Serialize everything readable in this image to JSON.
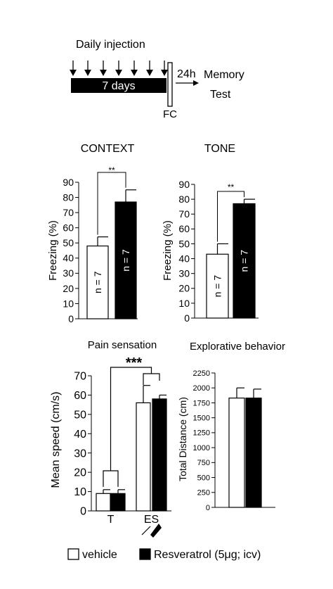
{
  "protocol": {
    "injection_label": "Daily injection",
    "duration_label": "7 days",
    "delay_label": "24h",
    "test_label_line1": "Memory",
    "test_label_line2": "Test",
    "fc_label": "FC"
  },
  "colors": {
    "vehicle": "#ffffff",
    "resveratrol": "#000000",
    "stroke": "#000000"
  },
  "legend": {
    "vehicle": "vehicle",
    "resveratrol": "Resveratrol (5μg; icv)"
  },
  "chart_data": [
    {
      "type": "bar",
      "title": "CONTEXT",
      "ylabel": "Freezing (%)",
      "ylim": [
        0,
        90
      ],
      "yticks": [
        0,
        10,
        20,
        30,
        40,
        50,
        60,
        70,
        80,
        90
      ],
      "categories": [
        ""
      ],
      "series": [
        {
          "name": "vehicle",
          "values": [
            48
          ],
          "errors": [
            6
          ],
          "n_labels": [
            "n = 7"
          ]
        },
        {
          "name": "Resveratrol (5μg; icv)",
          "values": [
            77
          ],
          "errors": [
            8
          ],
          "n_labels": [
            "n = 7"
          ]
        }
      ],
      "significance": "**"
    },
    {
      "type": "bar",
      "title": "TONE",
      "ylabel": "Freezing (%)",
      "ylim": [
        0,
        90
      ],
      "yticks": [
        0,
        10,
        20,
        30,
        40,
        50,
        60,
        70,
        80,
        90
      ],
      "categories": [
        ""
      ],
      "series": [
        {
          "name": "vehicle",
          "values": [
            43
          ],
          "errors": [
            7
          ],
          "n_labels": [
            "n = 7"
          ]
        },
        {
          "name": "Resveratrol (5μg; icv)",
          "values": [
            77
          ],
          "errors": [
            3
          ],
          "n_labels": [
            "n = 7"
          ]
        }
      ],
      "significance": "**"
    },
    {
      "type": "bar",
      "title": "Pain sensation",
      "ylabel": "Mean speed (cm/s)",
      "ylim": [
        0,
        70
      ],
      "yticks": [
        0,
        10,
        20,
        30,
        40,
        50,
        60,
        70
      ],
      "categories": [
        "T",
        "ES"
      ],
      "series": [
        {
          "name": "vehicle",
          "values": [
            9,
            56
          ],
          "errors": [
            2,
            9
          ]
        },
        {
          "name": "Resveratrol (5μg; icv)",
          "values": [
            9,
            58
          ],
          "errors": [
            2,
            2
          ]
        }
      ],
      "significance": "***"
    },
    {
      "type": "bar",
      "title": "Explorative behavior",
      "ylabel": "Total Distance (cm)",
      "ylim": [
        0,
        2250
      ],
      "yticks": [
        0,
        250,
        500,
        750,
        1000,
        1250,
        1500,
        1750,
        2000,
        2250
      ],
      "categories": [
        ""
      ],
      "series": [
        {
          "name": "vehicle",
          "values": [
            1830
          ],
          "errors": [
            170
          ]
        },
        {
          "name": "Resveratrol (5μg; icv)",
          "values": [
            1830
          ],
          "errors": [
            150
          ]
        }
      ]
    }
  ]
}
